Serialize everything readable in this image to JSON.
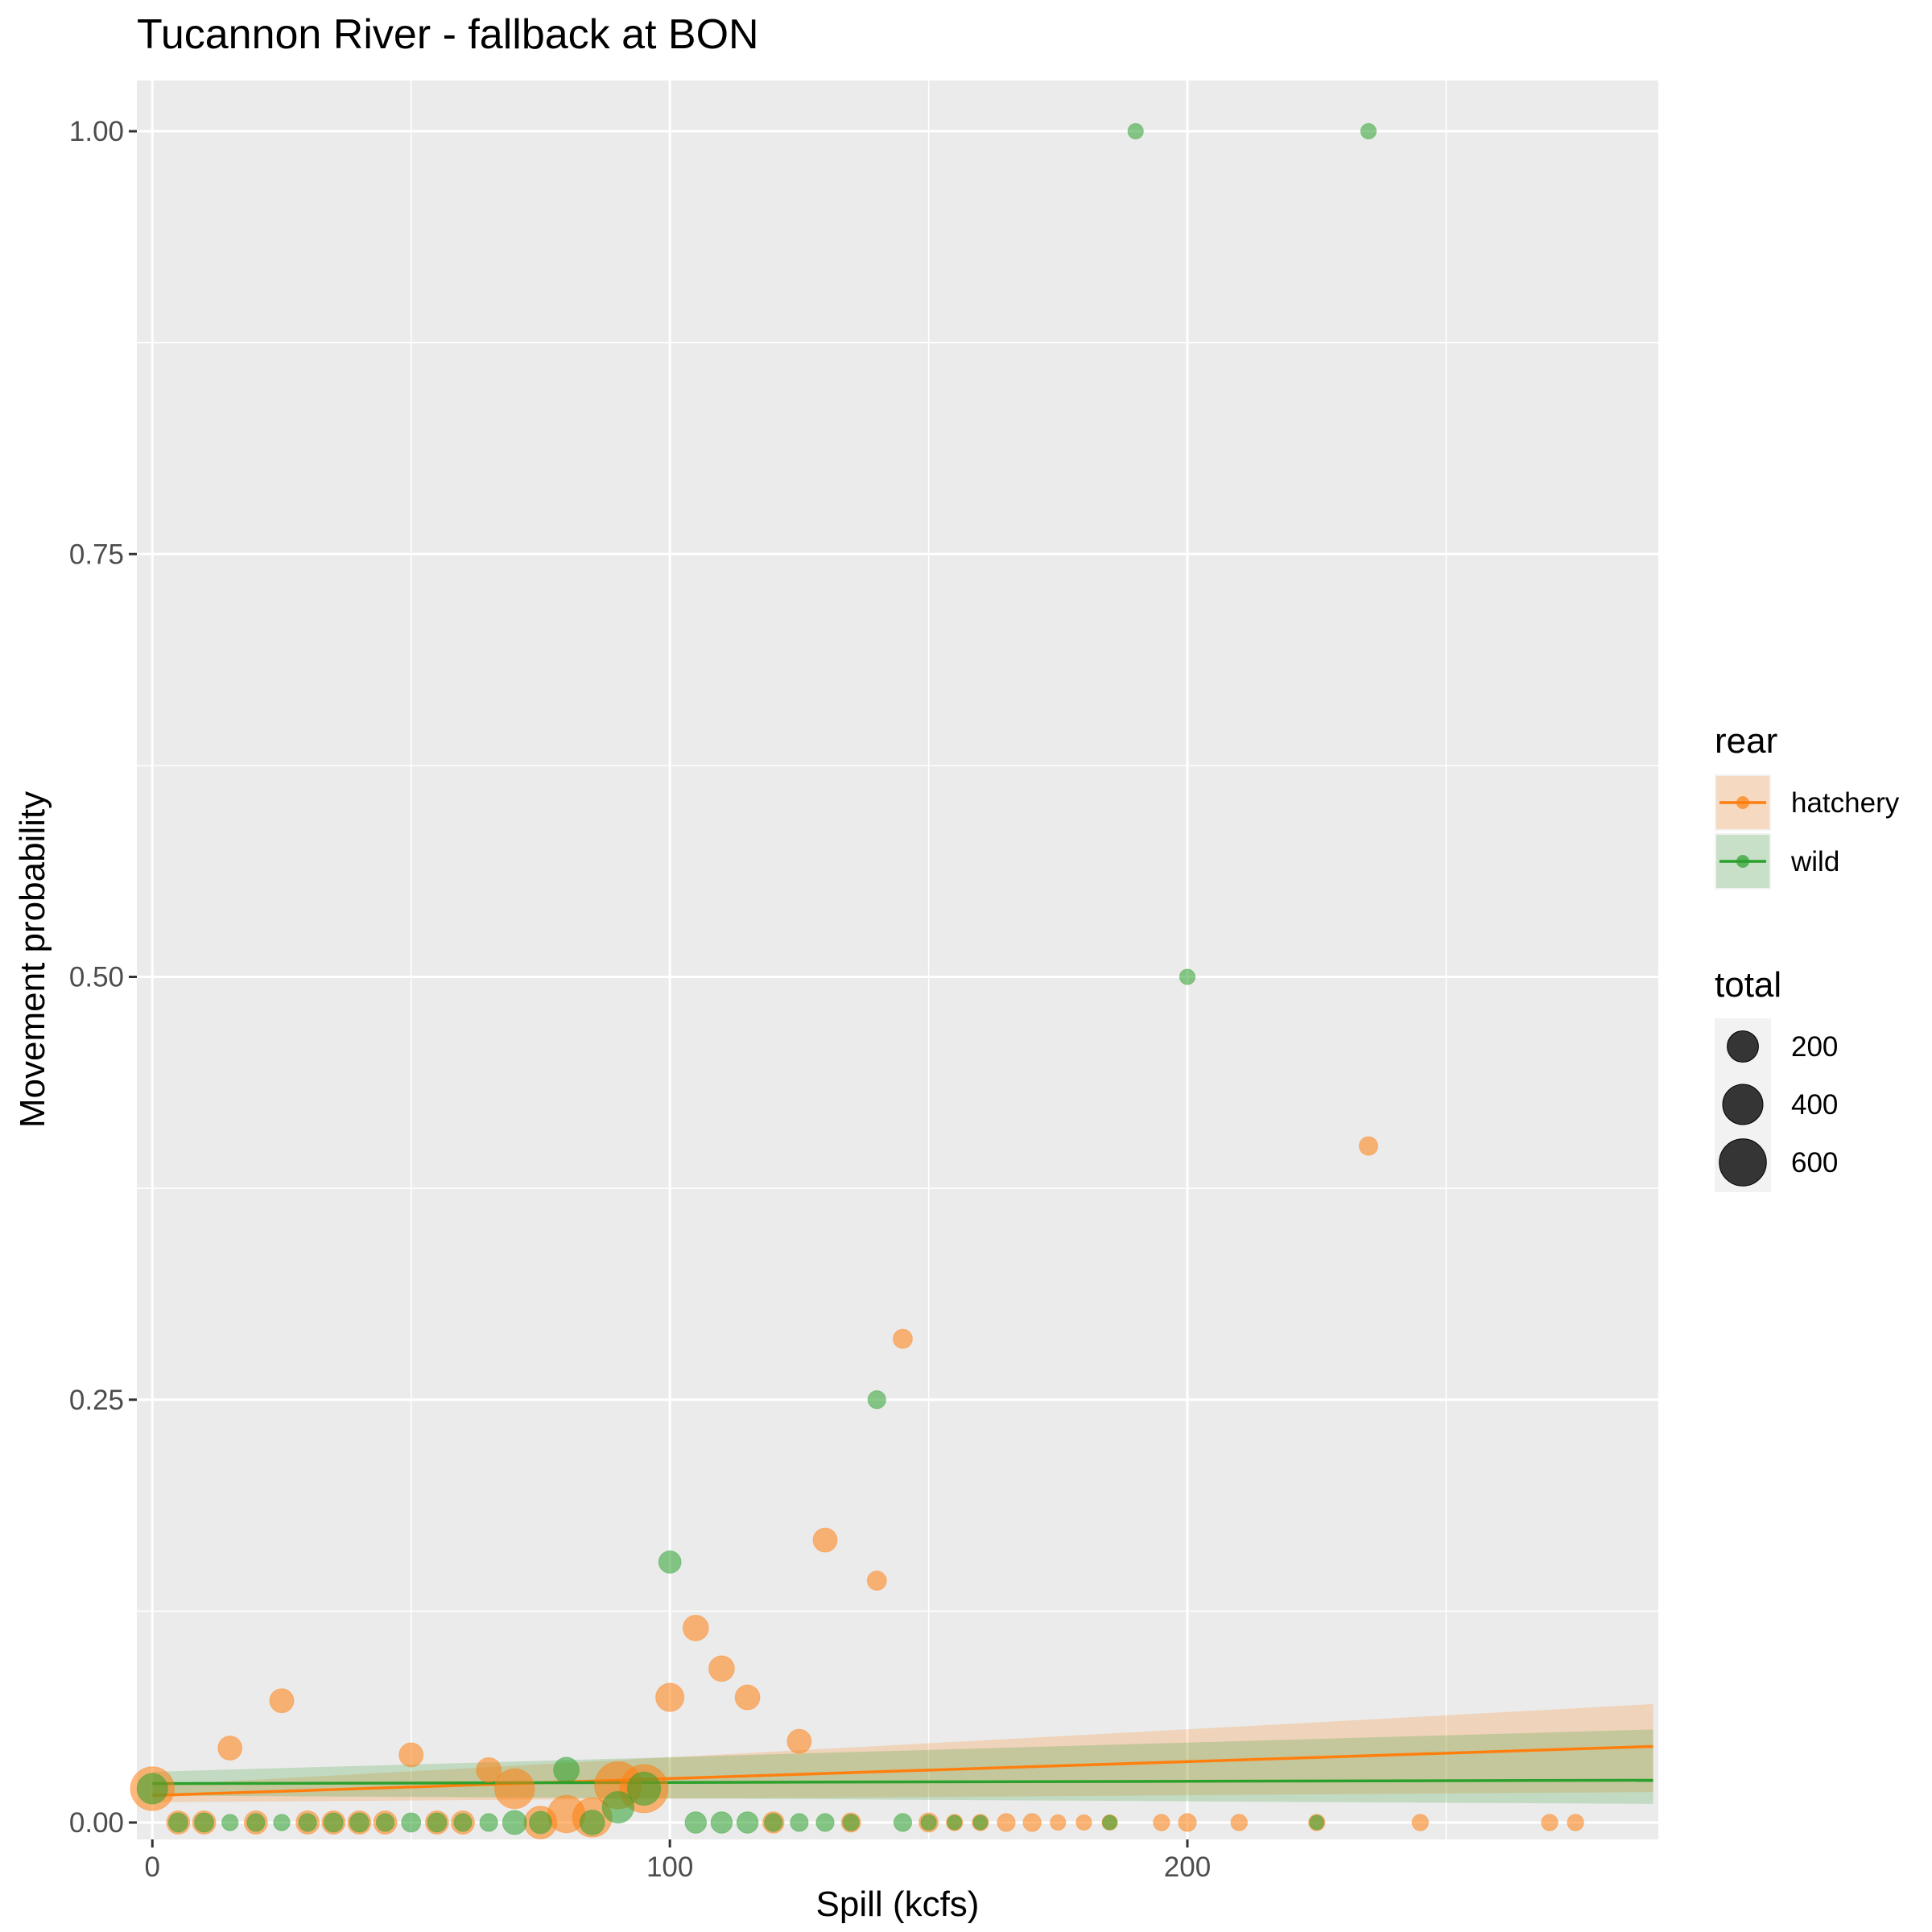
{
  "chart_data": {
    "type": "scatter",
    "title": "Tucannon River - fallback at BON",
    "xlabel": "Spill (kcfs)",
    "ylabel": "Movement probability",
    "xlim": [
      -3,
      291
    ],
    "ylim": [
      -0.01,
      1.03
    ],
    "x_ticks": [
      0,
      100,
      200
    ],
    "y_ticks": [
      0,
      0.25,
      0.5,
      0.75,
      1
    ],
    "y_tick_labels": [
      "0.00",
      "0.25",
      "0.50",
      "0.75",
      "1.00"
    ],
    "grid": true,
    "legend_placement": "right",
    "legend": {
      "color_title": "rear",
      "size_title": "total",
      "size_entries": [
        {
          "label": "200",
          "value": 200
        },
        {
          "label": "400",
          "value": 400
        },
        {
          "label": "600",
          "value": 600
        }
      ]
    },
    "series": [
      {
        "name": "hatchery",
        "color": "#ff7f0e",
        "points": [
          {
            "x": 0,
            "y": 0.02,
            "total": 500
          },
          {
            "x": 5,
            "y": 0,
            "total": 80
          },
          {
            "x": 10,
            "y": 0,
            "total": 80
          },
          {
            "x": 15,
            "y": 0.044,
            "total": 90
          },
          {
            "x": 20,
            "y": 0,
            "total": 80
          },
          {
            "x": 25,
            "y": 0.072,
            "total": 90
          },
          {
            "x": 30,
            "y": 0,
            "total": 80
          },
          {
            "x": 35,
            "y": 0,
            "total": 80
          },
          {
            "x": 40,
            "y": 0,
            "total": 80
          },
          {
            "x": 45,
            "y": 0,
            "total": 80
          },
          {
            "x": 50,
            "y": 0.04,
            "total": 90
          },
          {
            "x": 55,
            "y": 0,
            "total": 80
          },
          {
            "x": 60,
            "y": 0,
            "total": 80
          },
          {
            "x": 65,
            "y": 0.031,
            "total": 100
          },
          {
            "x": 70,
            "y": 0.02,
            "total": 390
          },
          {
            "x": 75,
            "y": 0,
            "total": 230
          },
          {
            "x": 80,
            "y": 0.005,
            "total": 330
          },
          {
            "x": 85,
            "y": 0.003,
            "total": 380
          },
          {
            "x": 90,
            "y": 0.022,
            "total": 600
          },
          {
            "x": 95,
            "y": 0.02,
            "total": 640
          },
          {
            "x": 100,
            "y": 0.074,
            "total": 150
          },
          {
            "x": 105,
            "y": 0.115,
            "total": 110
          },
          {
            "x": 110,
            "y": 0.091,
            "total": 110
          },
          {
            "x": 115,
            "y": 0.074,
            "total": 100
          },
          {
            "x": 120,
            "y": 0,
            "total": 60
          },
          {
            "x": 125,
            "y": 0.048,
            "total": 90
          },
          {
            "x": 130,
            "y": 0.167,
            "total": 90
          },
          {
            "x": 135,
            "y": 0,
            "total": 40
          },
          {
            "x": 140,
            "y": 0.143,
            "total": 40
          },
          {
            "x": 145,
            "y": 0.286,
            "total": 40
          },
          {
            "x": 150,
            "y": 0,
            "total": 40
          },
          {
            "x": 155,
            "y": 0,
            "total": 20
          },
          {
            "x": 160,
            "y": 0,
            "total": 20
          },
          {
            "x": 165,
            "y": 0,
            "total": 30
          },
          {
            "x": 170,
            "y": 0,
            "total": 30
          },
          {
            "x": 175,
            "y": 0,
            "total": 15
          },
          {
            "x": 180,
            "y": 0,
            "total": 15
          },
          {
            "x": 185,
            "y": 0,
            "total": 15
          },
          {
            "x": 195,
            "y": 0,
            "total": 20
          },
          {
            "x": 200,
            "y": 0,
            "total": 30
          },
          {
            "x": 210,
            "y": 0,
            "total": 20
          },
          {
            "x": 225,
            "y": 0,
            "total": 20
          },
          {
            "x": 235,
            "y": 0.4,
            "total": 35
          },
          {
            "x": 245,
            "y": 0,
            "total": 20
          },
          {
            "x": 270,
            "y": 0,
            "total": 20
          },
          {
            "x": 275,
            "y": 0,
            "total": 20
          }
        ]
      },
      {
        "name": "wild",
        "color": "#2ca02c",
        "points": [
          {
            "x": 0,
            "y": 0.02,
            "total": 190
          },
          {
            "x": 5,
            "y": 0,
            "total": 40
          },
          {
            "x": 10,
            "y": 0,
            "total": 40
          },
          {
            "x": 15,
            "y": 0,
            "total": 20
          },
          {
            "x": 20,
            "y": 0,
            "total": 30
          },
          {
            "x": 25,
            "y": 0,
            "total": 20
          },
          {
            "x": 30,
            "y": 0,
            "total": 30
          },
          {
            "x": 35,
            "y": 0,
            "total": 40
          },
          {
            "x": 40,
            "y": 0,
            "total": 40
          },
          {
            "x": 45,
            "y": 0,
            "total": 30
          },
          {
            "x": 50,
            "y": 0,
            "total": 40
          },
          {
            "x": 55,
            "y": 0,
            "total": 40
          },
          {
            "x": 60,
            "y": 0,
            "total": 30
          },
          {
            "x": 65,
            "y": 0,
            "total": 30
          },
          {
            "x": 70,
            "y": 0,
            "total": 90
          },
          {
            "x": 75,
            "y": 0,
            "total": 70
          },
          {
            "x": 80,
            "y": 0.031,
            "total": 110
          },
          {
            "x": 85,
            "y": 0,
            "total": 100
          },
          {
            "x": 90,
            "y": 0.009,
            "total": 210
          },
          {
            "x": 95,
            "y": 0.02,
            "total": 240
          },
          {
            "x": 100,
            "y": 0.154,
            "total": 70
          },
          {
            "x": 105,
            "y": 0,
            "total": 60
          },
          {
            "x": 110,
            "y": 0,
            "total": 60
          },
          {
            "x": 115,
            "y": 0,
            "total": 60
          },
          {
            "x": 120,
            "y": 0,
            "total": 30
          },
          {
            "x": 125,
            "y": 0,
            "total": 30
          },
          {
            "x": 130,
            "y": 0,
            "total": 30
          },
          {
            "x": 135,
            "y": 0,
            "total": 20
          },
          {
            "x": 140,
            "y": 0.25,
            "total": 30
          },
          {
            "x": 145,
            "y": 0,
            "total": 30
          },
          {
            "x": 150,
            "y": 0,
            "total": 15
          },
          {
            "x": 155,
            "y": 0,
            "total": 10
          },
          {
            "x": 160,
            "y": 0,
            "total": 10
          },
          {
            "x": 185,
            "y": 0,
            "total": 10
          },
          {
            "x": 190,
            "y": 1,
            "total": 15
          },
          {
            "x": 200,
            "y": 0.5,
            "total": 15
          },
          {
            "x": 225,
            "y": 0,
            "total": 10
          },
          {
            "x": 235,
            "y": 1,
            "total": 15
          }
        ]
      }
    ],
    "fits": [
      {
        "series": "hatchery",
        "color": "#ff7f0e",
        "x": [
          0,
          290
        ],
        "y": [
          0.016,
          0.045
        ],
        "lower": [
          0.012,
          0.018
        ],
        "upper": [
          0.022,
          0.07
        ]
      },
      {
        "series": "wild",
        "color": "#2ca02c",
        "x": [
          0,
          290
        ],
        "y": [
          0.023,
          0.025
        ],
        "lower": [
          0.016,
          0.011
        ],
        "upper": [
          0.03,
          0.055
        ]
      }
    ]
  }
}
